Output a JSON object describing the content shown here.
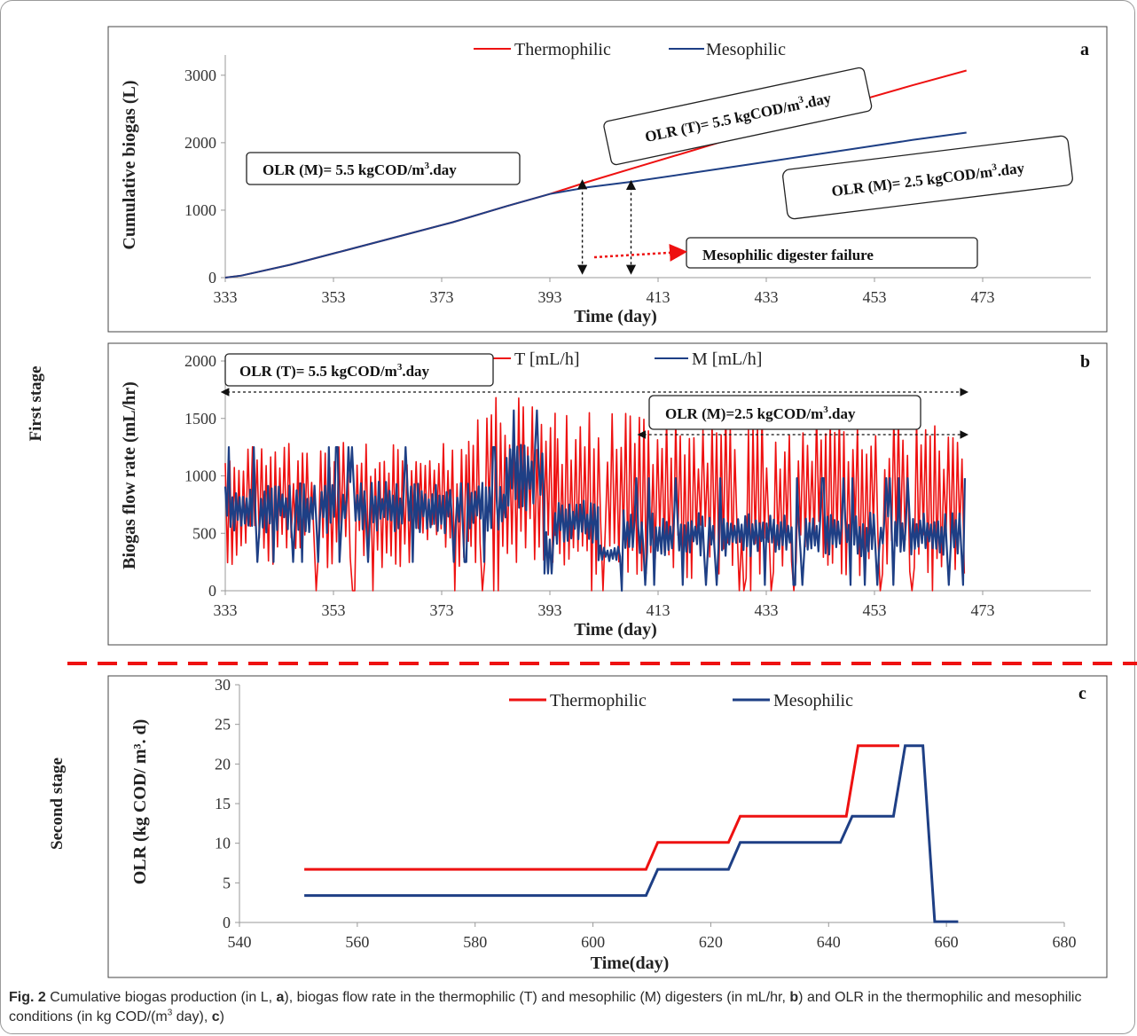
{
  "caption": {
    "fig_label": "Fig. 2",
    "text_1": " Cumulative biogas production (in L, ",
    "bold_a": "a",
    "text_2": "), biogas flow rate in the thermophilic (T) and mesophilic (M) digesters (in mL/hr, ",
    "bold_b": "b",
    "text_3": ") and OLR in the thermophilic and mesophilic conditions (in kg COD/(m",
    "sup_3": "3",
    "text_4": " day), ",
    "bold_c": "c",
    "text_5": ")"
  },
  "stages": {
    "first": "First  stage",
    "second": "Second stage"
  },
  "colors": {
    "thermophilic": "#ee1111",
    "mesophilic": "#1e3f85",
    "divider": "#ee1111"
  },
  "chart_data": [
    {
      "id": "a",
      "panel_letter": "a",
      "type": "line",
      "xlabel": "Time (day)",
      "ylabel": "Cumulative biogas (L)",
      "xlim": [
        333,
        493
      ],
      "ylim": [
        0,
        3300
      ],
      "xticks": [
        333,
        353,
        373,
        393,
        413,
        433,
        453,
        473
      ],
      "yticks": [
        0,
        1000,
        2000,
        3000
      ],
      "legend_position": "top-center",
      "series": [
        {
          "name": "Thermophilic",
          "color": "#ee1111",
          "x": [
            333,
            336,
            345,
            355,
            365,
            375,
            385,
            393,
            400,
            410,
            420,
            430,
            440,
            450,
            460,
            470
          ],
          "y": [
            0,
            30,
            190,
            400,
            610,
            820,
            1060,
            1240,
            1420,
            1660,
            1900,
            2140,
            2380,
            2620,
            2850,
            3070
          ]
        },
        {
          "name": "Mesophilic",
          "color": "#1e3f85",
          "x": [
            333,
            336,
            345,
            355,
            365,
            375,
            385,
            393,
            400,
            408,
            420,
            430,
            440,
            450,
            460,
            470
          ],
          "y": [
            0,
            30,
            190,
            400,
            610,
            820,
            1060,
            1240,
            1340,
            1420,
            1560,
            1680,
            1800,
            1920,
            2040,
            2150
          ]
        }
      ],
      "annotations": [
        {
          "id": "olr-m-55",
          "pre": "OLR (M)=  5.5 kgCOD/m",
          "sup": "3",
          "post": ".day"
        },
        {
          "id": "olr-t-55",
          "pre": "OLR (T)=  5.5 kgCOD/m",
          "sup": "3",
          "post": ".day"
        },
        {
          "id": "olr-m-25",
          "pre": "OLR (M)=  2.5 kgCOD/m",
          "sup": "3",
          "post": ".day"
        },
        {
          "id": "failure",
          "pre": "Mesophilic digester failure",
          "sup": "",
          "post": ""
        }
      ],
      "failure_markers_x": [
        399,
        408
      ]
    },
    {
      "id": "b",
      "panel_letter": "b",
      "type": "line",
      "xlabel": "Time (day)",
      "ylabel": "Biogas flow rate (mL/hr)",
      "xlim": [
        333,
        493
      ],
      "ylim": [
        0,
        2000
      ],
      "xticks": [
        333,
        353,
        373,
        393,
        413,
        433,
        453,
        473
      ],
      "yticks": [
        0,
        500,
        1000,
        1500,
        2000
      ],
      "legend_position": "top-center",
      "series": [
        {
          "name": "T [mL/h]",
          "color": "#ee1111",
          "segments": [
            {
              "x_start": 333,
              "x_end": 378,
              "min": 200,
              "max": 1300
            },
            {
              "x_start": 378,
              "x_end": 394,
              "min": 200,
              "max": 1750
            },
            {
              "x_start": 394,
              "x_end": 470,
              "min": 100,
              "max": 1550
            }
          ]
        },
        {
          "name": "M [mL/h]",
          "color": "#1e3f85",
          "segments": [
            {
              "x_start": 333,
              "x_end": 385,
              "min": 500,
              "max": 950
            },
            {
              "x_start": 385,
              "x_end": 392,
              "min": 700,
              "max": 1270
            },
            {
              "x_start": 392,
              "x_end": 402,
              "min": 400,
              "max": 800
            },
            {
              "x_start": 402,
              "x_end": 407,
              "min": 250,
              "max": 400
            },
            {
              "x_start": 407,
              "x_end": 470,
              "min": 300,
              "max": 680
            }
          ]
        }
      ],
      "annotations": [
        {
          "id": "olr-t-55-b",
          "pre": "OLR (T)=  5.5 kgCOD/m",
          "sup": "3",
          "post": ".day",
          "range": [
            333,
            470
          ]
        },
        {
          "id": "olr-m-25-b",
          "pre": "OLR (M)=2.5  kgCOD/m",
          "sup": "3",
          "post": ".day",
          "range": [
            410,
            470
          ]
        }
      ]
    },
    {
      "id": "c",
      "panel_letter": "c",
      "type": "line",
      "xlabel": "Time(day)",
      "ylabel": "OLR (kg COD/ m³. d)",
      "xlim": [
        540,
        680
      ],
      "ylim": [
        0,
        30
      ],
      "xticks": [
        540,
        560,
        580,
        600,
        620,
        640,
        660,
        680
      ],
      "yticks": [
        0,
        5,
        10,
        15,
        20,
        25,
        30
      ],
      "legend_position": "top-center",
      "series": [
        {
          "name": "Thermophilic",
          "color": "#ee1111",
          "x": [
            551,
            609,
            611,
            623,
            625,
            643,
            645,
            652
          ],
          "y": [
            6.7,
            6.7,
            10.1,
            10.1,
            13.4,
            13.4,
            22.3,
            22.3
          ]
        },
        {
          "name": "Mesophilic",
          "color": "#1e3f85",
          "x": [
            551,
            609,
            611,
            623,
            625,
            642,
            644,
            651,
            653,
            656,
            658,
            662
          ],
          "y": [
            3.4,
            3.4,
            6.7,
            6.7,
            10.1,
            10.1,
            13.4,
            13.4,
            22.3,
            22.3,
            0.1,
            0.1
          ]
        }
      ]
    }
  ]
}
